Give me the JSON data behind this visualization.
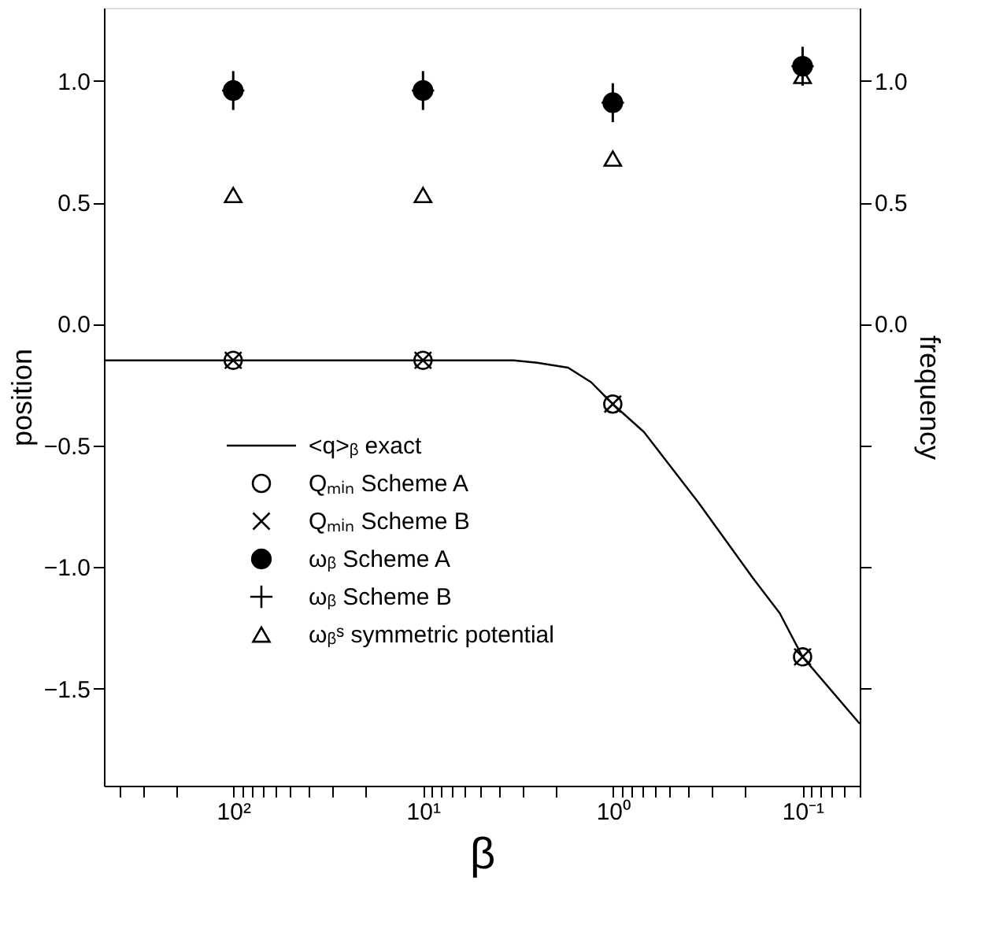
{
  "chart_data": {
    "type": "scatter",
    "xlabel": "β",
    "ylabel": "position",
    "y2label": "frequency",
    "log": "x",
    "grid": false,
    "legend": "left",
    "xlim": [
      480,
      0.05
    ],
    "xticks": [
      {
        "value": 400,
        "label": null
      },
      {
        "value": 300,
        "label": null
      },
      {
        "value": 200,
        "label": null
      },
      {
        "value": 100,
        "label": "10²"
      },
      {
        "value": 90,
        "label": null
      },
      {
        "value": 80,
        "label": null
      },
      {
        "value": 70,
        "label": null
      },
      {
        "value": 60,
        "label": null
      },
      {
        "value": 50,
        "label": null
      },
      {
        "value": 40,
        "label": null
      },
      {
        "value": 30,
        "label": null
      },
      {
        "value": 20,
        "label": null
      },
      {
        "value": 10,
        "label": "10¹"
      },
      {
        "value": 9,
        "label": null
      },
      {
        "value": 8,
        "label": null
      },
      {
        "value": 7,
        "label": null
      },
      {
        "value": 6,
        "label": null
      },
      {
        "value": 5,
        "label": null
      },
      {
        "value": 4,
        "label": null
      },
      {
        "value": 3,
        "label": null
      },
      {
        "value": 2,
        "label": null
      },
      {
        "value": 1,
        "label": "10⁰"
      },
      {
        "value": 0.9,
        "label": null
      },
      {
        "value": 0.8,
        "label": null
      },
      {
        "value": 0.7,
        "label": null
      },
      {
        "value": 0.6,
        "label": null
      },
      {
        "value": 0.5,
        "label": null
      },
      {
        "value": 0.4,
        "label": null
      },
      {
        "value": 0.3,
        "label": null
      },
      {
        "value": 0.2,
        "label": null
      },
      {
        "value": 0.1,
        "label": "10⁻¹"
      },
      {
        "value": 0.09,
        "label": null
      },
      {
        "value": 0.08,
        "label": null
      },
      {
        "value": 0.07,
        "label": null
      },
      {
        "value": 0.06,
        "label": null
      },
      {
        "value": 0.05,
        "label": null
      }
    ],
    "ylim": [
      -1.9,
      1.3
    ],
    "yticks": [
      {
        "value": -1.5,
        "label": "−1.5"
      },
      {
        "value": -1.0,
        "label": "−1.0"
      },
      {
        "value": -0.5,
        "label": "−0.5"
      },
      {
        "value": 0.0,
        "label": "0.0"
      },
      {
        "value": 0.5,
        "label": "0.5"
      },
      {
        "value": 1.0,
        "label": "1.0"
      }
    ],
    "y2lim": [
      -1.9,
      1.3
    ],
    "y2ticks": [
      {
        "value": -1.5,
        "label": null
      },
      {
        "value": -1.0,
        "label": null
      },
      {
        "value": -0.5,
        "label": null
      },
      {
        "value": 0.0,
        "label": "0.0"
      },
      {
        "value": 0.5,
        "label": "0.5"
      },
      {
        "value": 1.0,
        "label": "1.0"
      }
    ],
    "series": [
      {
        "name": "<q>ᵦ exact",
        "type": "line",
        "color": "#000000",
        "line_style": "solid",
        "x": [
          480,
          10,
          5,
          3.33,
          2.5,
          1.72,
          1.3,
          1,
          0.685,
          0.354,
          0.183,
          0.132,
          0.1,
          0.05
        ],
        "values": [
          -0.15,
          -0.15,
          -0.15,
          -0.15,
          -0.16,
          -0.18,
          -0.24,
          -0.33,
          -0.445,
          -0.735,
          -1.045,
          -1.19,
          -1.37,
          -1.645
        ]
      },
      {
        "name": "Qₘᵢₙ Scheme A",
        "marker": "open_circle",
        "color": "#000000",
        "x": [
          100,
          10,
          1,
          0.1
        ],
        "values": [
          -0.15,
          -0.15,
          -0.33,
          -1.37
        ]
      },
      {
        "name": "Qₘᵢₙ Scheme B",
        "marker": "x",
        "color": "#000000",
        "x": [
          100,
          10,
          1,
          0.1
        ],
        "values": [
          -0.15,
          -0.15,
          -0.33,
          -1.37
        ]
      },
      {
        "name": "ωᵦ Scheme A",
        "marker": "circle",
        "axis": "y2",
        "color": "#000000",
        "x": [
          100,
          10,
          1,
          0.1
        ],
        "values": [
          0.96,
          0.96,
          0.91,
          1.06
        ]
      },
      {
        "name": "ωᵦ Scheme B",
        "marker": "cross",
        "axis": "y2",
        "color": "#000000",
        "x": [
          100,
          10,
          1,
          0.1
        ],
        "values": [
          0.96,
          0.96,
          0.91,
          1.06
        ],
        "errors": [
          0.08,
          0.08,
          0.08,
          0.08
        ]
      },
      {
        "name": "ωᵦˢ symmetric potential",
        "marker": "triangle",
        "axis": "y2",
        "color": "#000000",
        "x": [
          100,
          10,
          1,
          0.1
        ],
        "values": [
          0.53,
          0.53,
          0.68,
          1.02
        ]
      }
    ]
  }
}
